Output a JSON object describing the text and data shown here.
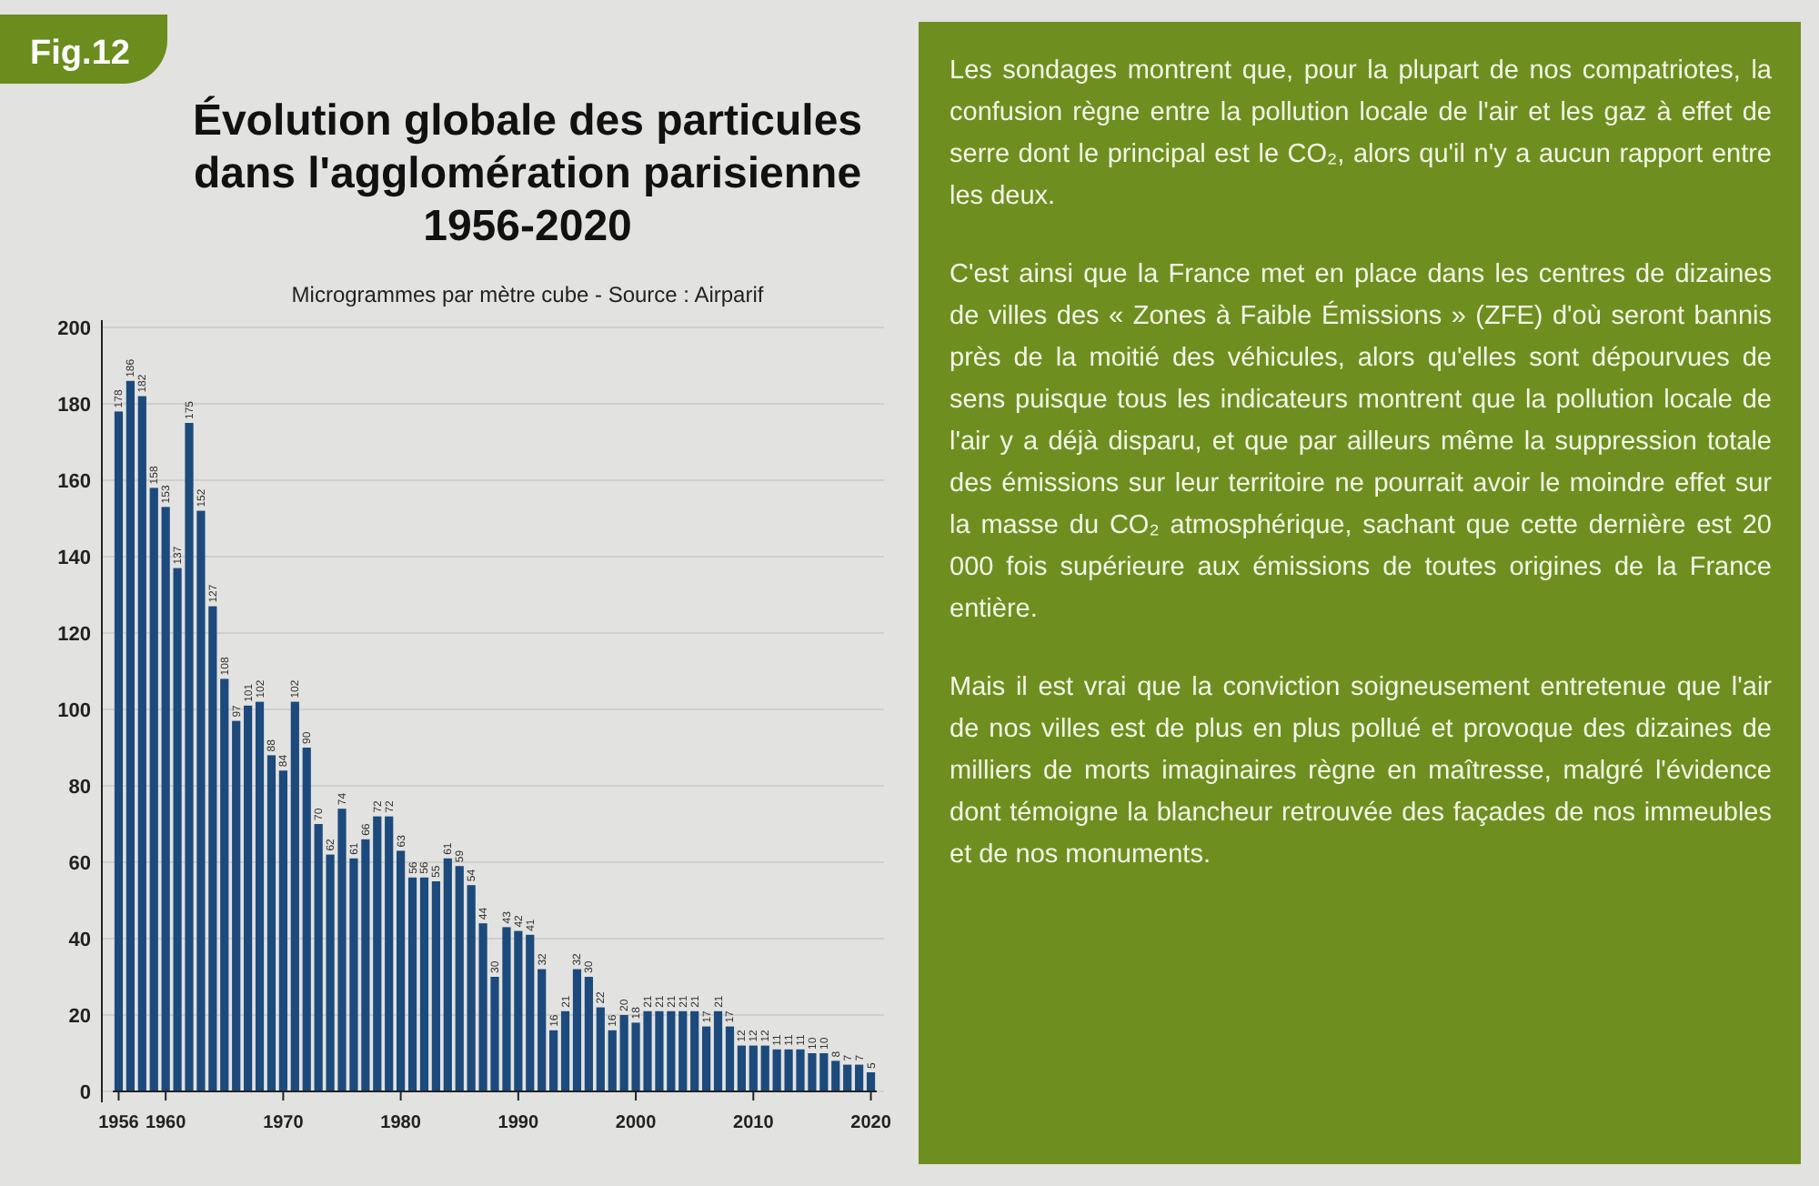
{
  "chart_data": {
    "type": "bar",
    "title": "Évolution globale des particules dans l'agglomération parisienne 1956-2020",
    "subtitle": "Microgrammes par mètre cube - Source : Airparif",
    "x": [
      1956,
      1957,
      1958,
      1959,
      1960,
      1961,
      1962,
      1963,
      1964,
      1965,
      1966,
      1967,
      1968,
      1969,
      1970,
      1971,
      1972,
      1973,
      1974,
      1975,
      1976,
      1977,
      1978,
      1979,
      1980,
      1981,
      1982,
      1983,
      1984,
      1985,
      1986,
      1987,
      1988,
      1989,
      1990,
      1991,
      1992,
      1993,
      1994,
      1995,
      1996,
      1997,
      1998,
      1999,
      2000,
      2001,
      2002,
      2003,
      2004,
      2005,
      2006,
      2007,
      2008,
      2009,
      2010,
      2011,
      2012,
      2013,
      2014,
      2015,
      2016,
      2017,
      2018,
      2019,
      2020
    ],
    "values": [
      178,
      186,
      182,
      158,
      153,
      137,
      175,
      152,
      127,
      108,
      97,
      101,
      102,
      88,
      84,
      102,
      90,
      70,
      62,
      74,
      61,
      66,
      72,
      72,
      63,
      56,
      56,
      55,
      61,
      59,
      54,
      44,
      30,
      43,
      42,
      41,
      32,
      16,
      21,
      32,
      30,
      22,
      16,
      20,
      18,
      21,
      21,
      21,
      21,
      21,
      17,
      21,
      17,
      12,
      12,
      12,
      11,
      11,
      11,
      10,
      10,
      8,
      7,
      7,
      5
    ],
    "color": "#1c4a7c",
    "xlim": [
      1955.5,
      2020.5
    ],
    "xticks": [
      1956,
      1960,
      1970,
      1980,
      1990,
      2000,
      2010,
      2020
    ],
    "ylim": [
      0,
      200
    ],
    "yticks": [
      0,
      20,
      40,
      60,
      80,
      100,
      120,
      140,
      160,
      180,
      200
    ],
    "grid": "y",
    "data_labels": true,
    "annotations": [
      "Fig.12",
      "Les sondages montrent que, pour la plupart de nos compatriotes, la confusion règne entre la pollution locale de l'air et les gaz à effet de serre dont le principal est le CO₂, alors qu'il n'y a aucun rapport entre les deux.",
      "C'est ainsi que la France met en place dans les centres de dizaines de villes des « Zones à Faible Émissions » (ZFE) d'où seront bannis près de la moitié des véhicules, alors qu'elles sont dépourvues de sens puisque tous les indicateurs montrent que la pollution locale de l'air y a déjà disparu, et que par ailleurs même la suppression totale des émissions sur leur territoire ne pourrait avoir le moindre effet sur la masse du CO₂ atmosphérique, sachant que cette dernière est 20 000 fois supérieure aux émissions de toutes origines de la France entière.",
      "Mais il est vrai que la conviction soigneusement entretenue que l'air de nos villes est de plus en plus pollué et provoque des dizaines de milliers de morts imaginaires règne en maîtresse, malgré l'évidence dont témoigne la blancheur retrouvée des façades de nos immeubles et de nos monuments."
    ]
  }
}
